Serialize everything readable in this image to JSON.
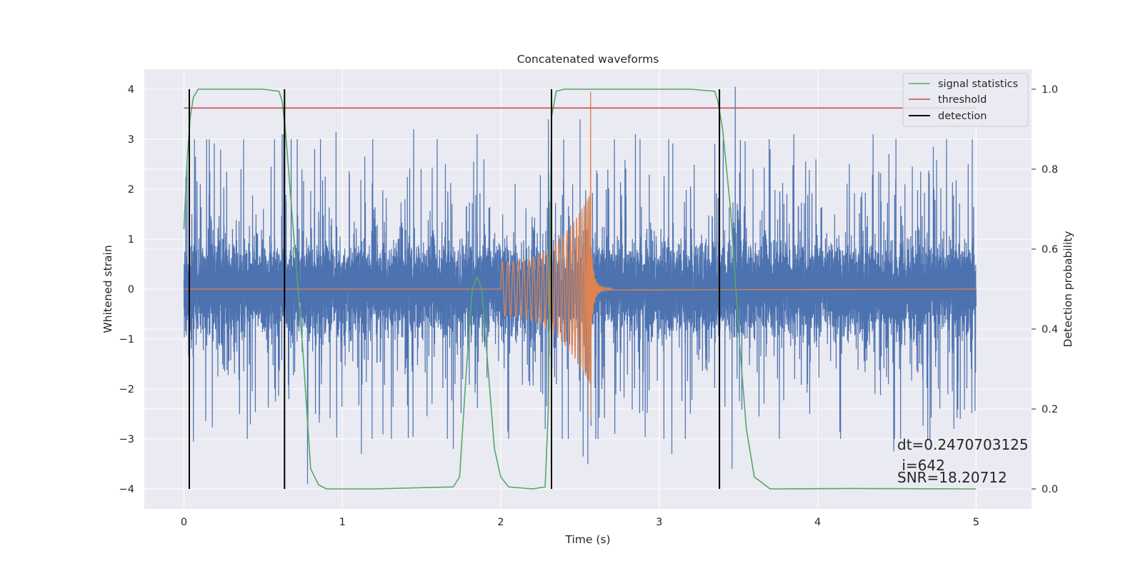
{
  "chart_data": {
    "type": "line",
    "title": "Concatenated waveforms",
    "xlabel": "Time (s)",
    "ylabel": "Whitened strain",
    "y2label": "Detection probability",
    "xlim": [
      -0.25,
      5.35
    ],
    "ylim": [
      -4.4,
      4.4
    ],
    "y2lim": [
      -0.05,
      1.05
    ],
    "xticks": [
      0,
      1,
      2,
      3,
      4,
      5
    ],
    "yticks": [
      -4,
      -3,
      -2,
      -1,
      0,
      1,
      2,
      3,
      4
    ],
    "y2ticks": [
      0.0,
      0.2,
      0.4,
      0.6,
      0.8,
      1.0
    ],
    "grid": true,
    "legend_position": "top-right",
    "legend": [
      "signal statistics",
      "threshold",
      "detection"
    ],
    "colors": {
      "strain": "#4c72b0",
      "waveform": "#dd8452",
      "signal": "#55a868",
      "threshold": "#c44e52",
      "detection": "#000000",
      "background": "#eaeaf2",
      "grid": "#ffffff"
    },
    "series": [
      {
        "name": "signal statistics",
        "axis": "right",
        "x": [
          0.0,
          0.02,
          0.04,
          0.06,
          0.09,
          0.15,
          0.3,
          0.5,
          0.6,
          0.62,
          0.64,
          0.66,
          0.7,
          0.75,
          0.8,
          0.85,
          0.9,
          1.2,
          1.7,
          1.74,
          1.78,
          1.82,
          1.85,
          1.88,
          1.92,
          1.96,
          2.0,
          2.05,
          2.2,
          2.28,
          2.3,
          2.32,
          2.35,
          2.4,
          2.6,
          3.2,
          3.35,
          3.37,
          3.4,
          3.45,
          3.5,
          3.55,
          3.6,
          3.7,
          4.2,
          5.0
        ],
        "y": [
          0.65,
          0.82,
          0.93,
          0.98,
          1.0,
          1.0,
          1.0,
          1.0,
          0.995,
          0.97,
          0.9,
          0.8,
          0.6,
          0.35,
          0.05,
          0.01,
          0.0,
          0.0,
          0.005,
          0.03,
          0.28,
          0.5,
          0.53,
          0.5,
          0.3,
          0.1,
          0.03,
          0.005,
          0.0,
          0.005,
          0.2,
          0.93,
          0.995,
          1.0,
          1.0,
          1.0,
          0.995,
          0.97,
          0.9,
          0.7,
          0.4,
          0.15,
          0.03,
          0.0,
          0.001,
          0.0
        ]
      },
      {
        "name": "threshold",
        "axis": "right",
        "x": [
          0.0,
          5.0
        ],
        "y": [
          0.953,
          0.953
        ]
      }
    ],
    "detections_x": [
      0.034,
      0.635,
      2.32,
      3.38
    ],
    "strain_noise": {
      "x_range": [
        0.0,
        5.0
      ],
      "core_amplitude": 0.75,
      "typical_peak": 2.0,
      "spikes": [
        {
          "x": 0.02,
          "y": 2.5
        },
        {
          "x": 0.03,
          "y": -1.35
        },
        {
          "x": 0.05,
          "y": 1.5
        },
        {
          "x": 0.06,
          "y": -3.05
        },
        {
          "x": 0.25,
          "y": -1.6
        },
        {
          "x": 0.27,
          "y": 2.35
        },
        {
          "x": 0.36,
          "y": 2.4
        },
        {
          "x": 0.4,
          "y": -3.0
        },
        {
          "x": 0.55,
          "y": 2.45
        },
        {
          "x": 0.62,
          "y": 3.1
        },
        {
          "x": 0.63,
          "y": 3.1
        },
        {
          "x": 0.78,
          "y": -3.9
        },
        {
          "x": 0.83,
          "y": -2.5
        },
        {
          "x": 0.96,
          "y": 3.15
        },
        {
          "x": 1.12,
          "y": -3.3
        },
        {
          "x": 1.45,
          "y": 3.2
        },
        {
          "x": 1.65,
          "y": 2.5
        },
        {
          "x": 1.7,
          "y": -3.2
        },
        {
          "x": 1.85,
          "y": 3.1
        },
        {
          "x": 2.3,
          "y": 3.4
        },
        {
          "x": 2.28,
          "y": -2.8
        },
        {
          "x": 2.5,
          "y": 3.4
        },
        {
          "x": 2.52,
          "y": -3.35
        },
        {
          "x": 2.55,
          "y": -3.5
        },
        {
          "x": 2.85,
          "y": 3.1
        },
        {
          "x": 2.72,
          "y": -2.9
        },
        {
          "x": 3.06,
          "y": 3.0
        },
        {
          "x": 3.08,
          "y": -3.3
        },
        {
          "x": 3.48,
          "y": 4.05
        },
        {
          "x": 3.46,
          "y": -3.6
        },
        {
          "x": 3.7,
          "y": 2.8
        },
        {
          "x": 3.85,
          "y": 3.1
        },
        {
          "x": 3.95,
          "y": -2.5
        },
        {
          "x": 4.2,
          "y": 2.5
        },
        {
          "x": 4.35,
          "y": 3.1
        },
        {
          "x": 4.45,
          "y": 2.7
        },
        {
          "x": 4.48,
          "y": -3.25
        },
        {
          "x": 4.65,
          "y": 2.35
        },
        {
          "x": 4.73,
          "y": 2.85
        },
        {
          "x": 4.86,
          "y": -2.8
        },
        {
          "x": 4.95,
          "y": 2.5
        },
        {
          "x": 4.9,
          "y": -2.6
        }
      ]
    },
    "waveform_chirp": {
      "x_start": 2.0,
      "x_merger": 2.565,
      "x_ringdown_end": 2.7,
      "amplitude_start": 0.55,
      "amplitude_peak": 3.95,
      "amplitude_trough": -2.6
    },
    "annotations": {
      "dt": "dt=0.2470703125",
      "i": " i=642",
      "snr": "SNR=18.20712"
    }
  }
}
